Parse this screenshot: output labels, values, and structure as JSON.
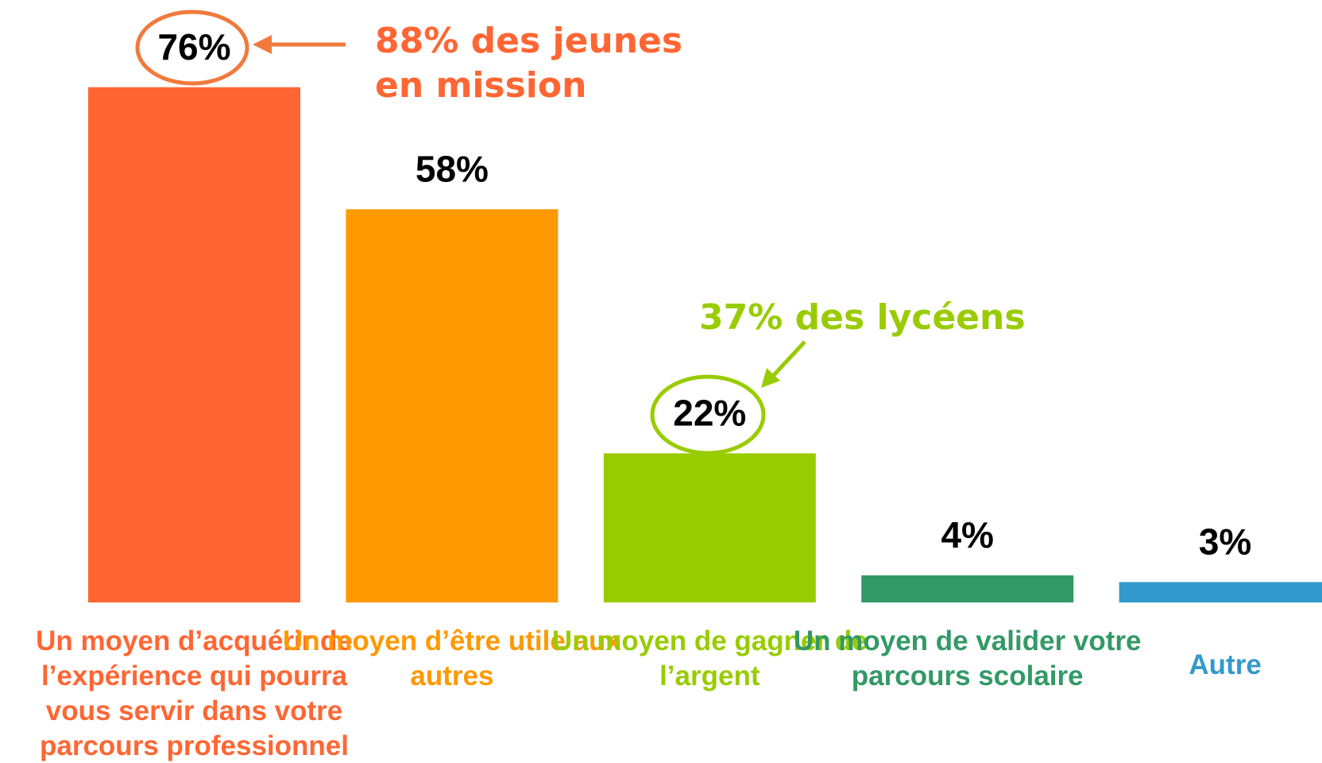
{
  "chart_data": {
    "type": "bar",
    "categories": [
      "Un moyen d’acquérir de l’expérience qui pourra vous servir dans votre parcours professionnel",
      "Un moyen d’être utile aux autres",
      "Un moyen de gagner de l’argent",
      "Un moyen de valider votre parcours scolaire",
      "Autre"
    ],
    "values": [
      76,
      58,
      22,
      4,
      3
    ],
    "value_labels": [
      "76%",
      "58%",
      "22%",
      "4%",
      "3%"
    ],
    "colors": [
      "#FF6633",
      "#FF9900",
      "#99CC00",
      "#339966",
      "#3399CC"
    ],
    "annotations": [
      "88% des jeunes en mission",
      "37% des lycéens"
    ]
  }
}
